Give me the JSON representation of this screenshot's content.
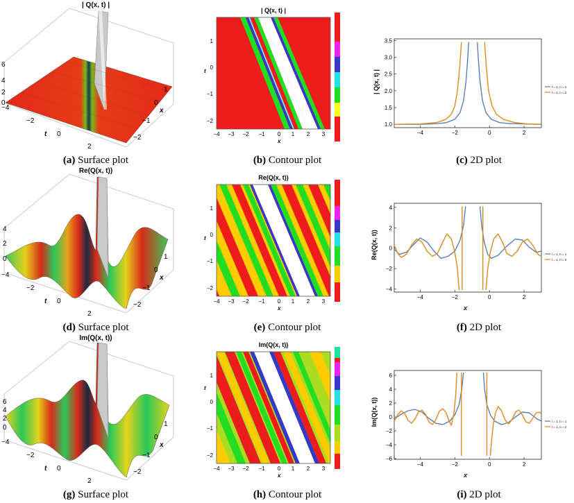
{
  "panels": [
    {
      "id": "a",
      "type": "surface",
      "title": "| Q(x, t) |",
      "caption_letter": "(a)",
      "caption_text": " Surface plot",
      "z_ticks": [
        "6",
        "4",
        "2",
        "0"
      ],
      "t_ticks": [
        "−4",
        "−2",
        "0",
        "2"
      ],
      "x_ticks": [
        "1",
        "0",
        "−1",
        "−2"
      ],
      "t_label": "t",
      "x_label": "x"
    },
    {
      "id": "b",
      "type": "contour",
      "title": "| Q(x, t) |",
      "caption_letter": "(b)",
      "caption_text": " Contour plot",
      "x_ticks": [
        "−4",
        "−3",
        "−2",
        "−1",
        "0",
        "1",
        "2",
        "3"
      ],
      "t_ticks": [
        "1",
        "0",
        "−1",
        "−2"
      ],
      "x_label": "x",
      "t_label": "t"
    },
    {
      "id": "c",
      "type": "line2d",
      "caption_letter": "(c)",
      "caption_text": " 2D plot",
      "ylabel": "| Q(x, t) |",
      "xlabel": "",
      "legend": [
        "l = 1, n = 1",
        "l = 1, n = 2"
      ]
    },
    {
      "id": "d",
      "type": "surface",
      "title": "Re(Q(x, t))",
      "caption_letter": "(d)",
      "caption_text": " Surface plot",
      "z_ticks": [
        "4",
        "2",
        "0",
        "−4"
      ],
      "t_ticks": [
        "−4",
        "−2",
        "0",
        "2"
      ],
      "x_ticks": [
        "1",
        "0",
        "−1",
        "−2"
      ],
      "t_label": "t",
      "x_label": "x"
    },
    {
      "id": "e",
      "type": "contour",
      "title": "Re(Q(x, t))",
      "caption_letter": "(e)",
      "caption_text": " Contour plot",
      "x_ticks": [
        "−4",
        "−3",
        "−2",
        "−1",
        "0",
        "1",
        "2",
        "3"
      ],
      "t_ticks": [
        "1",
        "0",
        "−1",
        "−2"
      ],
      "x_label": "x",
      "t_label": "t"
    },
    {
      "id": "f",
      "type": "line2d",
      "caption_letter": "(f)",
      "caption_text": " 2D plot",
      "ylabel": "Re(Q(x, t))",
      "xlabel": "x",
      "legend": [
        "l = 1, n = 1",
        "l = 1, n = 2"
      ]
    },
    {
      "id": "g",
      "type": "surface",
      "title": "Im(Q(x, t))",
      "caption_letter": "(g)",
      "caption_text": " Surface plot",
      "z_ticks": [
        "6",
        "4",
        "2",
        "0",
        "−4"
      ],
      "t_ticks": [
        "−2",
        "0",
        "2"
      ],
      "x_ticks": [
        "1",
        "0",
        "−1",
        "−2"
      ],
      "t_label": "t",
      "x_label": "x"
    },
    {
      "id": "h",
      "type": "contour",
      "title": "Im(Q(x, t))",
      "caption_letter": "(h)",
      "caption_text": " Contour plot",
      "x_ticks": [
        "−4",
        "−3",
        "−2",
        "−1",
        "0",
        "1",
        "2",
        "3"
      ],
      "t_ticks": [
        "1",
        "0",
        "−1",
        "−2"
      ],
      "x_label": "x",
      "t_label": "t"
    },
    {
      "id": "i",
      "type": "line2d",
      "caption_letter": "(i)",
      "caption_text": " 2D plot",
      "ylabel": "Im(Q(x, t))",
      "xlabel": "x",
      "legend": [
        "l = 1, n = 1",
        "l = 1, n = 2"
      ]
    }
  ],
  "chart_data": [
    {
      "type": "line",
      "id": "c",
      "title": "",
      "xlabel": "",
      "ylabel": "| Q(x, t) |",
      "xlim": [
        -5.5,
        3
      ],
      "ylim": [
        0.9,
        3.55
      ],
      "xticks": [
        -4,
        -2,
        0,
        2
      ],
      "yticks": [
        1.0,
        1.5,
        2.0,
        2.5,
        3.0,
        3.5
      ],
      "series": [
        {
          "name": "l = 1, n = 1",
          "color": "#5b7fb8",
          "segments": [
            [
              [
                -5.5,
                1.0
              ],
              [
                -4,
                1.0
              ],
              [
                -3,
                1.02
              ],
              [
                -2.5,
                1.05
              ],
              [
                -2,
                1.15
              ],
              [
                -1.7,
                1.35
              ],
              [
                -1.5,
                1.7
              ],
              [
                -1.35,
                2.3
              ],
              [
                -1.25,
                3.0
              ],
              [
                -1.2,
                3.45
              ]
            ],
            [
              [
                -0.7,
                3.45
              ],
              [
                -0.65,
                3.0
              ],
              [
                -0.55,
                2.3
              ],
              [
                -0.4,
                1.7
              ],
              [
                -0.2,
                1.35
              ],
              [
                0.1,
                1.15
              ],
              [
                0.6,
                1.05
              ],
              [
                1.2,
                1.02
              ],
              [
                3,
                1.0
              ]
            ]
          ]
        },
        {
          "name": "l = 1, n = 2",
          "color": "#e08a1e",
          "segments": [
            [
              [
                -5.5,
                1.0
              ],
              [
                -4,
                1.01
              ],
              [
                -3,
                1.06
              ],
              [
                -2.5,
                1.15
              ],
              [
                -2.2,
                1.3
              ],
              [
                -2,
                1.55
              ],
              [
                -1.85,
                2.0
              ],
              [
                -1.72,
                2.7
              ],
              [
                -1.62,
                3.45
              ]
            ],
            [
              [
                -0.28,
                3.45
              ],
              [
                -0.18,
                2.7
              ],
              [
                -0.05,
                2.0
              ],
              [
                0.15,
                1.55
              ],
              [
                0.4,
                1.3
              ],
              [
                0.8,
                1.15
              ],
              [
                1.4,
                1.06
              ],
              [
                2.2,
                1.01
              ],
              [
                3,
                1.0
              ]
            ]
          ]
        }
      ]
    },
    {
      "type": "line",
      "id": "f",
      "title": "",
      "xlabel": "x",
      "ylabel": "Re(Q(x, t))",
      "xlim": [
        -5.5,
        3
      ],
      "ylim": [
        -4.3,
        4.4
      ],
      "xticks": [
        -4,
        -2,
        0,
        2
      ],
      "yticks": [
        -4,
        -2,
        0,
        2,
        4
      ],
      "series": [
        {
          "name": "l = 1, n = 1",
          "color": "#5b7fb8",
          "segments": [
            [
              [
                -5.5,
                -0.1
              ],
              [
                -5.2,
                -0.6
              ],
              [
                -4.8,
                -0.4
              ],
              [
                -4.3,
                0.5
              ],
              [
                -4,
                1.0
              ],
              [
                -3.6,
                0.6
              ],
              [
                -3.2,
                -0.3
              ],
              [
                -2.8,
                -1.0
              ],
              [
                -2.4,
                -0.8
              ],
              [
                -2,
                -0.3
              ],
              [
                -1.7,
                0.8
              ],
              [
                -1.5,
                2.2
              ],
              [
                -1.38,
                4.1
              ]
            ],
            [
              [
                -0.55,
                4.1
              ],
              [
                -0.45,
                2.2
              ],
              [
                -0.3,
                0.6
              ],
              [
                -0.1,
                -0.6
              ],
              [
                0.1,
                -1.0
              ],
              [
                0.5,
                -0.7
              ],
              [
                1,
                0.2
              ],
              [
                1.5,
                0.9
              ],
              [
                1.9,
                0.8
              ],
              [
                2.3,
                0.1
              ],
              [
                2.7,
                -0.4
              ],
              [
                3,
                -0.3
              ]
            ]
          ]
        },
        {
          "name": "l = 1, n = 2",
          "color": "#e08a1e",
          "segments": [
            [
              [
                -5.5,
                0.3
              ],
              [
                -5.3,
                -0.5
              ],
              [
                -5.1,
                -0.9
              ],
              [
                -4.8,
                -0.6
              ],
              [
                -4.5,
                0.3
              ],
              [
                -4.2,
                0.9
              ],
              [
                -3.9,
                0.6
              ],
              [
                -3.6,
                -0.3
              ],
              [
                -3.3,
                -0.8
              ],
              [
                -3.0,
                -0.5
              ],
              [
                -2.7,
                0.6
              ],
              [
                -2.45,
                1.4
              ],
              [
                -2.2,
                0.9
              ],
              [
                -2.0,
                -0.4
              ],
              [
                -1.85,
                -2.0
              ],
              [
                -1.75,
                -4.1
              ]
            ],
            [
              [
                -1.58,
                -4.1
              ],
              [
                -1.58,
                4.1
              ]
            ],
            [
              [
                -0.38,
                4.1
              ],
              [
                -0.38,
                -4.1
              ]
            ],
            [
              [
                -0.2,
                -4.1
              ],
              [
                -0.1,
                -2.0
              ],
              [
                0.05,
                -0.4
              ],
              [
                0.25,
                0.9
              ],
              [
                0.5,
                1.4
              ],
              [
                0.75,
                0.6
              ],
              [
                1.0,
                -0.5
              ],
              [
                1.3,
                -0.8
              ],
              [
                1.6,
                -0.3
              ],
              [
                1.9,
                0.6
              ],
              [
                2.2,
                0.9
              ],
              [
                2.5,
                0.3
              ],
              [
                2.8,
                -0.6
              ],
              [
                3,
                -0.8
              ]
            ]
          ]
        }
      ]
    },
    {
      "type": "line",
      "id": "i",
      "title": "",
      "xlabel": "x",
      "ylabel": "Im(Q(x, t))",
      "xlim": [
        -5.5,
        3
      ],
      "ylim": [
        -6.1,
        6.7
      ],
      "xticks": [
        -4,
        -2,
        0,
        2
      ],
      "yticks": [
        -6,
        -4,
        -2,
        0,
        2,
        4,
        6
      ],
      "series": [
        {
          "name": "l = 1, n = 1",
          "color": "#5b7fb8",
          "segments": [
            [
              [
                -5.5,
                -0.3
              ],
              [
                -5.1,
                0.4
              ],
              [
                -4.7,
                0.9
              ],
              [
                -4.3,
                1.1
              ],
              [
                -3.9,
                0.7
              ],
              [
                -3.5,
                -0.2
              ],
              [
                -3.1,
                -0.9
              ],
              [
                -2.7,
                -1.1
              ],
              [
                -2.3,
                -0.6
              ],
              [
                -2,
                0.3
              ],
              [
                -1.75,
                1.8
              ],
              [
                -1.6,
                4.0
              ],
              [
                -1.5,
                6.4
              ]
            ],
            [
              [
                -0.35,
                6.4
              ],
              [
                -0.28,
                4.0
              ],
              [
                -0.15,
                1.8
              ],
              [
                0.05,
                0.3
              ],
              [
                0.3,
                -0.6
              ],
              [
                0.7,
                -1.1
              ],
              [
                1.1,
                -0.8
              ],
              [
                1.5,
                0.0
              ],
              [
                1.9,
                0.7
              ],
              [
                2.3,
                0.6
              ],
              [
                2.7,
                -0.2
              ],
              [
                3,
                -0.6
              ]
            ]
          ]
        },
        {
          "name": "l = 1, n = 2",
          "color": "#e08a1e",
          "segments": [
            [
              [
                -5.5,
                -0.6
              ],
              [
                -5.3,
                0.3
              ],
              [
                -5.1,
                0.9
              ],
              [
                -4.9,
                0.5
              ],
              [
                -4.7,
                -0.5
              ],
              [
                -4.5,
                -0.9
              ],
              [
                -4.3,
                -0.3
              ],
              [
                -4.1,
                0.7
              ],
              [
                -3.9,
                1.0
              ],
              [
                -3.7,
                0.4
              ],
              [
                -3.5,
                -0.7
              ],
              [
                -3.3,
                -1.1
              ],
              [
                -3.1,
                -0.4
              ],
              [
                -2.9,
                0.8
              ],
              [
                -2.7,
                1.2
              ],
              [
                -2.5,
                0.6
              ],
              [
                -2.35,
                -0.5
              ],
              [
                -2.2,
                -1.2
              ],
              [
                -2.05,
                0.5
              ],
              [
                -1.95,
                3.0
              ],
              [
                -1.88,
                6.4
              ]
            ],
            [
              [
                -1.62,
                6.4
              ],
              [
                -1.62,
                -5.6
              ]
            ],
            [
              [
                -0.15,
                6.4
              ],
              [
                -0.15,
                -5.6
              ]
            ],
            [
              [
                0.05,
                -5.6
              ],
              [
                0.12,
                -3.5
              ],
              [
                0.22,
                -1.0
              ],
              [
                0.35,
                0.6
              ],
              [
                0.5,
                1.5
              ],
              [
                0.7,
                0.9
              ],
              [
                0.9,
                -0.4
              ],
              [
                1.1,
                -1.0
              ],
              [
                1.3,
                -0.4
              ],
              [
                1.5,
                0.7
              ],
              [
                1.7,
                1.0
              ],
              [
                1.9,
                0.3
              ],
              [
                2.1,
                -0.7
              ],
              [
                2.3,
                -0.9
              ],
              [
                2.5,
                -0.2
              ],
              [
                2.7,
                0.6
              ],
              [
                2.9,
                0.7
              ],
              [
                3,
                0.4
              ]
            ]
          ]
        }
      ]
    }
  ]
}
